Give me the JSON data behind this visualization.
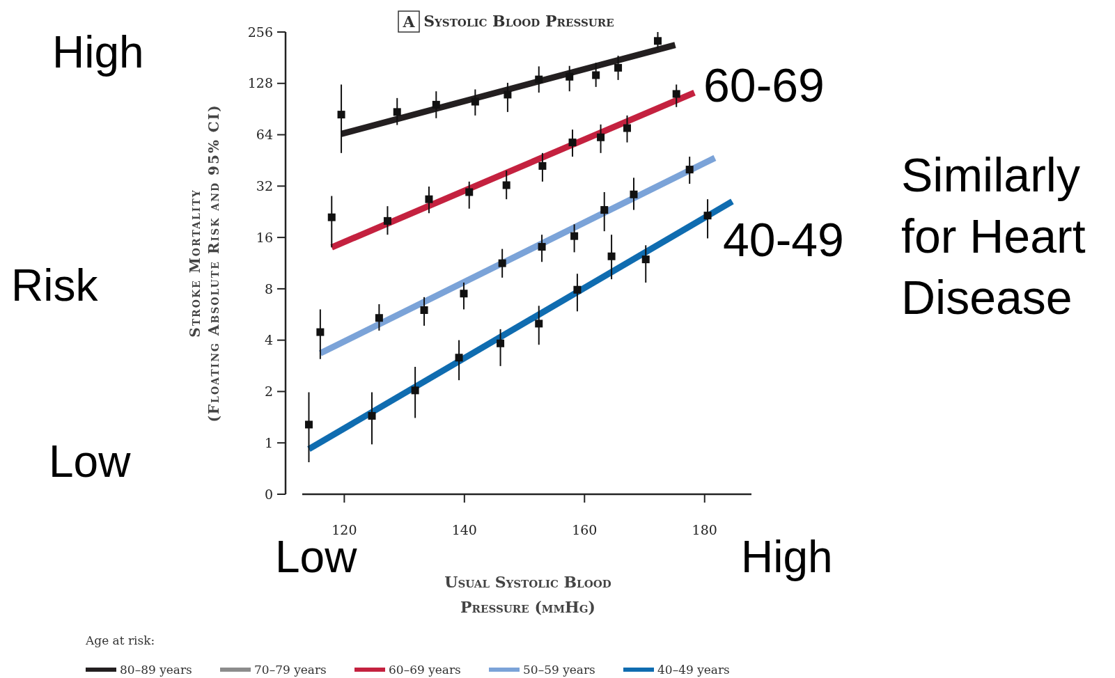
{
  "chart_data": {
    "type": "scatter",
    "title": "Systolic Blood Pressure",
    "xlabel": "Usual Systolic Blood Pressure (mmHg)",
    "ylabel": "Stroke Mortality (Floating Absolute Risk and 95% CI)",
    "legend_title": "Age at risk:",
    "legend": "bottom left",
    "log": "y",
    "marker": "square",
    "grid": false,
    "xlim": [
      113,
      187.8
    ],
    "xticks": [
      120,
      140,
      160,
      180
    ],
    "ylim": [
      0.5,
      256
    ],
    "yticks": [
      {
        "value": 0.5,
        "label": "0"
      },
      1,
      2,
      4,
      8,
      16,
      32,
      64,
      128,
      256
    ],
    "annotations": [
      "A",
      "High",
      "Risk",
      "Low",
      "Low",
      "High",
      "60-69",
      "40-49",
      "Similarly for Heart Disease"
    ],
    "series": [
      {
        "type": "line",
        "marker": "none",
        "name": "80–89 years",
        "color": "#231f20",
        "x": [
          119.5,
          175.1
        ],
        "values": [
          64.7,
          215
        ]
      },
      {
        "type": "line",
        "name": "70–79 years",
        "color": "#8c8c8c"
      },
      {
        "type": "line",
        "marker": "none",
        "name": "60–69 years",
        "color": "#c4213f",
        "x": [
          117.9,
          178.3
        ],
        "values": [
          14,
          113
        ]
      },
      {
        "type": "line",
        "marker": "none",
        "name": "50–59 years",
        "color": "#7ba3d8",
        "x": [
          116,
          181.7
        ],
        "values": [
          3.35,
          46.8
        ]
      },
      {
        "type": "line",
        "marker": "none",
        "name": "40–49 years",
        "color": "#0f6cb0",
        "x": [
          114.1,
          184.6
        ],
        "values": [
          0.92,
          26
        ]
      },
      {
        "color": "#111111",
        "x": [
          119.5,
          128.8,
          135.3,
          141.8,
          147.2,
          152.4,
          157.5,
          161.9,
          165.6,
          172.2
        ],
        "values": [
          84,
          87,
          96,
          100,
          110,
          135,
          140,
          143,
          158,
          227
        ],
        "errors": [
          [
            50,
            126
          ],
          [
            73,
            105
          ],
          [
            80,
            115
          ],
          [
            83,
            118
          ],
          [
            87,
            129
          ],
          [
            113,
            161
          ],
          [
            115,
            162
          ],
          [
            122,
            169
          ],
          [
            134,
            186
          ],
          [
            205,
            256
          ]
        ]
      },
      {
        "color": "#111111",
        "x": [
          117.9,
          127.2,
          134.1,
          140.8,
          147,
          153,
          158,
          162.7,
          167.1,
          175.3
        ],
        "values": [
          21,
          20,
          26.8,
          29.5,
          32.4,
          42,
          57.7,
          61.8,
          70,
          111
        ],
        "errors": [
          [
            14,
            28
          ],
          [
            16.6,
            24.4
          ],
          [
            22.2,
            31.8
          ],
          [
            23.6,
            34
          ],
          [
            26.8,
            39.4
          ],
          [
            34,
            50
          ],
          [
            47.6,
            68.6
          ],
          [
            50,
            73.5
          ],
          [
            57.7,
            83
          ],
          [
            93,
            126
          ]
        ]
      },
      {
        "color": "#111111",
        "x": [
          116,
          125.8,
          133.3,
          139.9,
          146.3,
          152.9,
          158.3,
          163.3,
          168.2,
          177.5
        ],
        "values": [
          4.46,
          5.4,
          6,
          7.5,
          11.3,
          14.1,
          16.3,
          23.2,
          28.6,
          40
        ],
        "errors": [
          [
            3.1,
            6.06
          ],
          [
            4.55,
            6.5
          ],
          [
            4.86,
            7.15
          ],
          [
            6.06,
            8.7
          ],
          [
            9.3,
            13.7
          ],
          [
            11.5,
            16.6
          ],
          [
            13.1,
            19.1
          ],
          [
            17.4,
            29.5
          ],
          [
            23.2,
            35.8
          ],
          [
            33,
            47.6
          ]
        ]
      },
      {
        "color": "#111111",
        "x": [
          114.1,
          124.6,
          131.8,
          139.1,
          146,
          152.4,
          158.8,
          164.5,
          170.2,
          180.5
        ],
        "values": [
          1.28,
          1.44,
          2.03,
          3.16,
          3.83,
          5,
          7.9,
          12.4,
          11.9,
          21.5
        ],
        "errors": [
          [
            0.77,
            1.98
          ],
          [
            0.98,
            1.98
          ],
          [
            1.4,
            2.79
          ],
          [
            2.33,
            4
          ],
          [
            2.82,
            4.64
          ],
          [
            3.76,
            6.36
          ],
          [
            5.9,
            9.8
          ],
          [
            9.1,
            16.6
          ],
          [
            8.7,
            14.4
          ],
          [
            15.8,
            26.8
          ]
        ]
      }
    ]
  }
}
